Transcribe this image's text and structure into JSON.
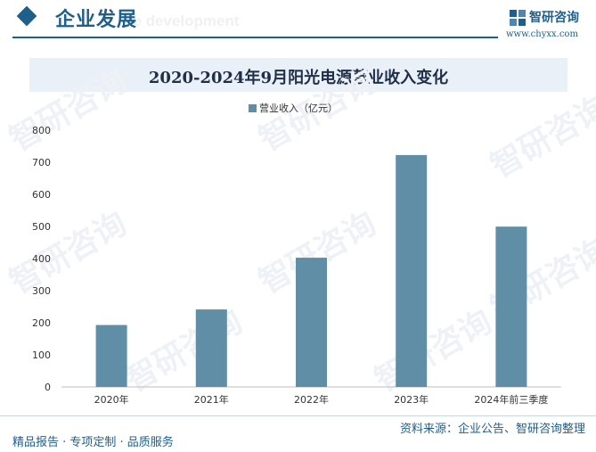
{
  "header": {
    "section_title": "企业发展",
    "section_subtitle": "ce development",
    "brand_name": "智研咨询",
    "brand_url": "www.chyxx.com"
  },
  "chart_data": {
    "type": "bar",
    "title": "2020-2024年9月阳光电源营业收入变化",
    "categories": [
      "2020年",
      "2021年",
      "2022年",
      "2023年",
      "2024年前三季度"
    ],
    "series": [
      {
        "name": "营业收入（亿元）",
        "values": [
          192.9,
          241.4,
          402.6,
          722.5,
          499.5
        ]
      }
    ],
    "ylim": [
      0,
      800
    ],
    "yticks": [
      0,
      100,
      200,
      300,
      400,
      500,
      600,
      700,
      800
    ],
    "legend_position": "top",
    "grid": false,
    "bar_color": "#5f8ea6"
  },
  "watermark": {
    "text": "智研咨询"
  },
  "footer": {
    "left": "精品报告 · 专项定制 · 品质服务",
    "right": "资料来源：企业公告、智研咨询整理"
  }
}
